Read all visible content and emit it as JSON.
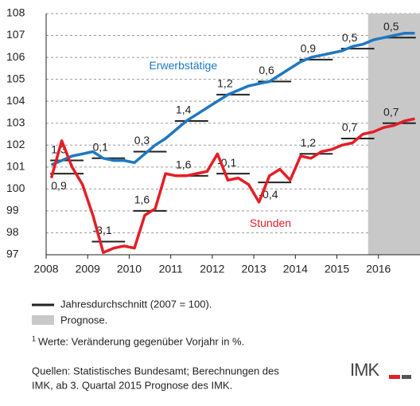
{
  "chart_data": {
    "type": "line",
    "x": [
      2008.125,
      2008.375,
      2008.625,
      2008.875,
      2009.125,
      2009.375,
      2009.625,
      2009.875,
      2010.125,
      2010.375,
      2010.625,
      2010.875,
      2011.125,
      2011.375,
      2011.625,
      2011.875,
      2012.125,
      2012.375,
      2012.625,
      2012.875,
      2013.125,
      2013.375,
      2013.625,
      2013.875,
      2014.125,
      2014.375,
      2014.625,
      2014.875,
      2015.125,
      2015.375,
      2015.625,
      2015.875,
      2016.125,
      2016.375,
      2016.625,
      2016.875
    ],
    "series": [
      {
        "name": "Erwerbstätige",
        "color": "#1f78c1",
        "values": [
          101.1,
          101.3,
          101.5,
          101.6,
          101.7,
          101.4,
          101.3,
          101.3,
          101.2,
          101.6,
          102.0,
          102.3,
          102.7,
          103.1,
          103.4,
          103.7,
          104.0,
          104.3,
          104.5,
          104.7,
          104.8,
          104.9,
          105.2,
          105.5,
          105.8,
          106.0,
          106.1,
          106.2,
          106.3,
          106.5,
          106.6,
          106.8,
          106.9,
          107.0,
          107.1,
          107.1
        ],
        "annual": {
          "values": [
            101.3,
            101.4,
            101.7,
            103.1,
            104.3,
            104.9,
            105.9,
            106.4,
            106.9
          ],
          "changes": {
            "values": [
              1.3,
              0.1,
              0.3,
              1.4,
              1.2,
              0.6,
              0.9,
              0.5,
              0.5
            ],
            "value_labels": [
              "1,3",
              "0,1",
              "0,3",
              "1,4",
              "1,2",
              "0,6",
              "0,9",
              "0,5",
              "0,5"
            ]
          }
        }
      },
      {
        "name": "Stunden",
        "color": "#e41e26",
        "values": [
          100.5,
          102.2,
          101.0,
          100.2,
          98.8,
          97.1,
          97.3,
          97.4,
          97.3,
          98.8,
          99.1,
          100.7,
          100.6,
          100.6,
          100.7,
          100.8,
          101.6,
          100.4,
          100.5,
          100.2,
          99.4,
          100.6,
          100.9,
          100.4,
          101.5,
          101.4,
          101.7,
          101.8,
          102.0,
          102.1,
          102.5,
          102.6,
          102.8,
          102.9,
          103.1,
          103.2
        ],
        "annual": {
          "values": [
            100.7,
            97.6,
            99.0,
            100.6,
            100.7,
            100.3,
            101.6,
            102.3,
            103.0
          ],
          "changes": {
            "values": [
              0.9,
              -3.1,
              1.6,
              1.6,
              -0.1,
              -0.4,
              1.2,
              0.7,
              0.7
            ],
            "value_labels": [
              "0,9",
              "-3,1",
              "1,6",
              "1,6",
              "-0,1",
              "-0,4",
              "1,2",
              "0,7",
              "0,7"
            ]
          }
        }
      }
    ],
    "xlim": [
      2008,
      2017
    ],
    "xticks": [
      2008,
      2009,
      2010,
      2011,
      2012,
      2013,
      2014,
      2015,
      2016
    ],
    "ylim": [
      97,
      108
    ],
    "yticks": [
      97,
      98,
      99,
      100,
      101,
      102,
      103,
      104,
      105,
      106,
      107,
      108
    ],
    "grid": true,
    "forecast_start": 2015.75,
    "forecast_color": "#c8c8c8",
    "legend": [
      {
        "label": "Jahresdurchschnitt (2007 = 100).",
        "color": "#222222"
      },
      {
        "label": "Prognose.",
        "color": "#c8c8c8"
      }
    ],
    "footnote_mark": "1",
    "footnote": "Werte: Veränderung gegenüber Vorjahr in %.",
    "source": [
      "Quellen: Statistisches Bundesamt; Berechnungen des",
      "IMK, ab 3. Quartal 2015 Prognose des IMK."
    ],
    "logo": "IMK"
  }
}
